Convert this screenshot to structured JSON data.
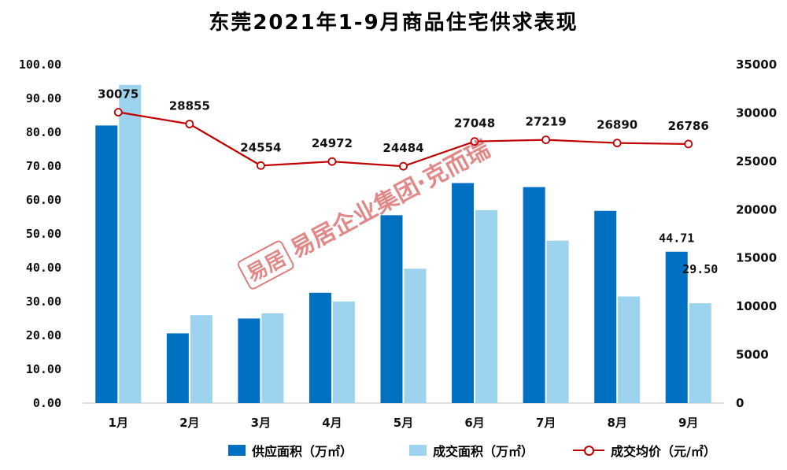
{
  "chart_data": {
    "type": "bar",
    "title": "东莞2021年1-9月商品住宅供求表现",
    "categories": [
      "1月",
      "2月",
      "3月",
      "4月",
      "5月",
      "6月",
      "7月",
      "8月",
      "9月"
    ],
    "series": [
      {
        "name": "供应面积（万㎡）",
        "type": "bar",
        "axis": "left",
        "color": "#0070C0",
        "values": [
          82.0,
          20.6,
          25.0,
          32.6,
          55.5,
          65.0,
          63.8,
          56.8,
          44.71
        ]
      },
      {
        "name": "成交面积（万㎡）",
        "type": "bar",
        "axis": "left",
        "color": "#9DD3EE",
        "values": [
          94.0,
          26.0,
          26.5,
          30.0,
          39.7,
          57.0,
          48.0,
          31.5,
          29.5
        ]
      },
      {
        "name": "成交均价（元/㎡）",
        "type": "line",
        "axis": "right",
        "color": "#C00000",
        "values": [
          30075,
          28855,
          24554,
          24972,
          24484,
          27048,
          27219,
          26890,
          26786
        ]
      }
    ],
    "bar_labels": [
      {
        "series": 0,
        "index": 8,
        "text": "44.71"
      },
      {
        "series": 1,
        "index": 8,
        "text": "29.50"
      }
    ],
    "y_left": {
      "min": 0,
      "max": 100,
      "step": 10,
      "ticks": [
        "0.00",
        "10.00",
        "20.00",
        "30.00",
        "40.00",
        "50.00",
        "60.00",
        "70.00",
        "80.00",
        "90.00",
        "100.00"
      ]
    },
    "y_right": {
      "min": 0,
      "max": 35000,
      "step": 5000,
      "ticks": [
        "0",
        "5000",
        "10000",
        "15000",
        "20000",
        "25000",
        "30000",
        "35000"
      ]
    },
    "grid": false,
    "legend_position": "bottom"
  },
  "watermark": {
    "seal": "易居",
    "text": "易居企业集团·克而瑞"
  }
}
